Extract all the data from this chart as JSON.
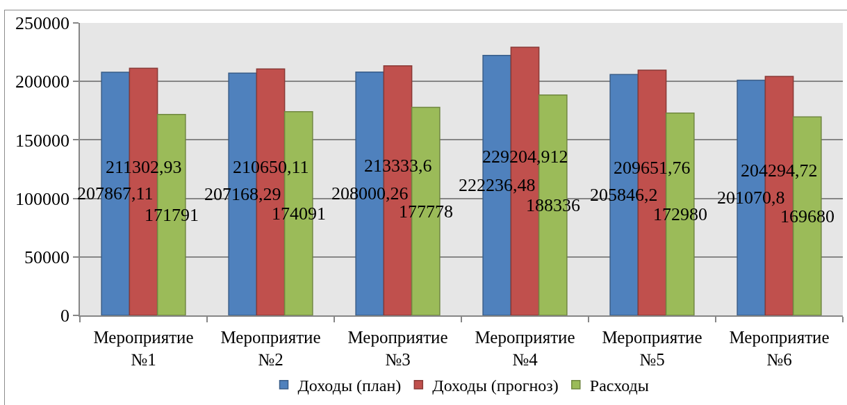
{
  "chart_data": {
    "type": "bar",
    "categories": [
      "Мероприятие №1",
      "Мероприятие №2",
      "Мероприятие №3",
      "Мероприятие №4",
      "Мероприятие №5",
      "Мероприятие №6"
    ],
    "series": [
      {
        "name": "Доходы (план)",
        "color": "#4f81bd",
        "values": [
          207867.11,
          207168.29,
          208000.26,
          222236.48,
          205846.2,
          201070.8
        ],
        "value_labels": [
          "207867,11",
          "207168,29",
          "208000,26",
          "222236,48",
          "205846,2",
          "201070,8"
        ]
      },
      {
        "name": "Доходы (прогноз)",
        "color": "#c0504d",
        "values": [
          211302.93,
          210650.11,
          213333.6,
          229204.912,
          209651.76,
          204294.72
        ],
        "value_labels": [
          "211302,93",
          "210650,11",
          "213333,6",
          "229204,912",
          "209651,76",
          "204294,72"
        ]
      },
      {
        "name": "Расходы",
        "color": "#9bbb59",
        "values": [
          171791,
          174091,
          177778,
          188336,
          172980,
          169680
        ],
        "value_labels": [
          "171791",
          "174091",
          "177778",
          "188336",
          "172980",
          "169680"
        ]
      }
    ],
    "ylim": [
      0,
      250000
    ],
    "yticks": [
      0,
      50000,
      100000,
      150000,
      200000,
      250000
    ],
    "grid": "y",
    "legend": "bottom"
  }
}
